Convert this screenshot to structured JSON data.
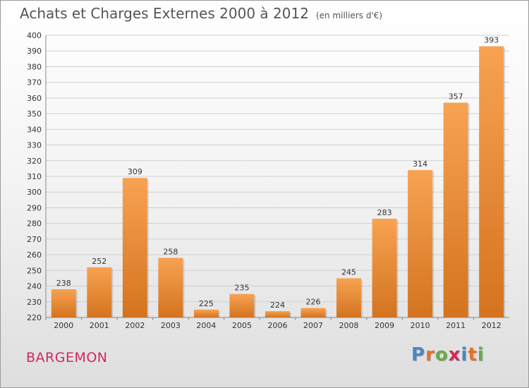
{
  "title": "Achats et Charges Externes 2000 à 2012",
  "subtitle": "(en milliers d'€)",
  "location": "BARGEMON",
  "brand": {
    "text": "Proxiti",
    "colors": [
      "#4a86c6",
      "#e8702a",
      "#6aa84f",
      "#d02a5c",
      "#4a86c6",
      "#e8702a",
      "#6aa84f"
    ]
  },
  "chart_data": {
    "type": "bar",
    "categories": [
      "2000",
      "2001",
      "2002",
      "2003",
      "2004",
      "2005",
      "2006",
      "2007",
      "2008",
      "2009",
      "2010",
      "2011",
      "2012"
    ],
    "values": [
      238,
      252,
      309,
      258,
      225,
      235,
      224,
      226,
      245,
      283,
      314,
      357,
      393
    ],
    "ylim": [
      220,
      400
    ],
    "yticks": [
      220,
      230,
      240,
      250,
      260,
      270,
      280,
      290,
      300,
      310,
      320,
      330,
      340,
      350,
      360,
      370,
      380,
      390,
      400
    ],
    "grid": true,
    "bar_color": "#f0923a",
    "bar_color_dark": "#d4731f"
  }
}
